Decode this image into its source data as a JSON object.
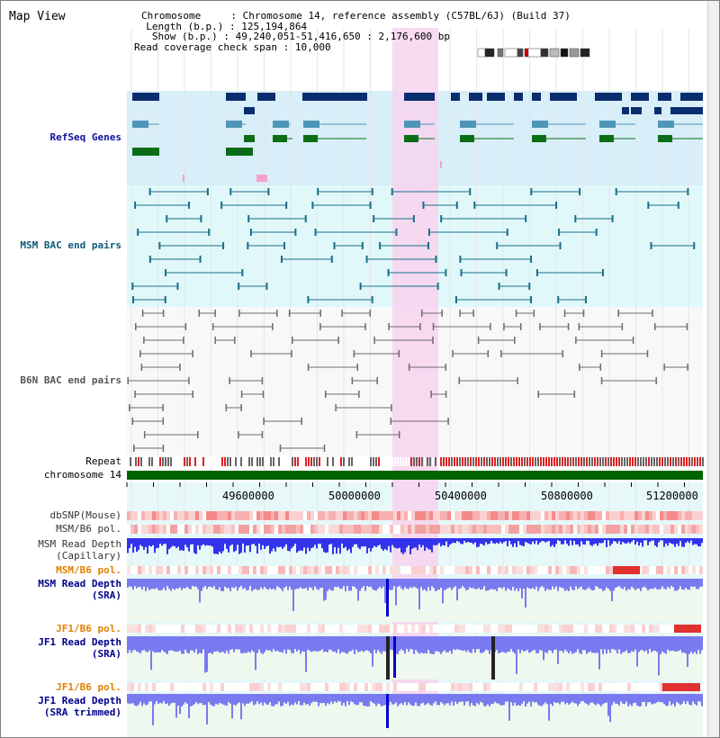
{
  "title": "Map View",
  "info": {
    "chromosome_key": "Chromosome",
    "chromosome_val": "Chromosome 14, reference assembly (C57BL/6J) (Build 37)",
    "length_key": "Length (b.p.)",
    "length_val": "125,194,864",
    "show_key": "Show (b.p.)",
    "show_val": "49,240,051-51,416,650 : 2,176,600 bp",
    "span_key": "Read coverage check span",
    "span_val": "10,000"
  },
  "tracks": {
    "refseq": "RefSeq Genes",
    "msm_bac": "MSM BAC end pairs",
    "b6n_bac": "B6N BAC end pairs",
    "repeat": "Repeat",
    "chromosome": "chromosome 14",
    "dbsnp": "dbSNP(Mouse)",
    "msm_b6_pol_1": "MSM/B6 pol.",
    "msm_depth_cap_1": "MSM Read Depth",
    "msm_depth_cap_2": "(Capillary)",
    "msm_b6_pol_2": "MSM/B6 pol.",
    "msm_depth_sra_1": "MSM Read Depth",
    "msm_depth_sra_2": "(SRA)",
    "jf1_pol_1": "JF1/B6 pol.",
    "jf1_depth_1": "JF1 Read Depth",
    "jf1_depth_2": "(SRA)",
    "jf1_pol_2": "JF1/B6 pol.",
    "jf1_trim_1": "JF1 Read Depth",
    "jf1_trim_2": "(SRA trimmed)"
  },
  "axis": {
    "ticks": [
      "49600000",
      "50000000",
      "50400000",
      "50800000",
      "51200000"
    ]
  },
  "colors": {
    "refseq_bg": "#d8eef8",
    "msm_bg": "#e0f8fa",
    "b6n_bg": "#f8f8f8",
    "highlight": "#f7d4ee",
    "refseq_gene_dark": "#0a2d6e",
    "refseq_gene_mid": "#4e96b8",
    "refseq_gene_green": "#0b6e17",
    "msm_bac": "#1a6e8a",
    "b6n_bac": "#6b6b6b",
    "repeat_red": "#e02020",
    "chromosome_green": "#006400",
    "depth_blue": "#3333ee",
    "label_blue": "#00008b",
    "label_orange": "#e08000",
    "label_teal": "#105a78"
  }
}
